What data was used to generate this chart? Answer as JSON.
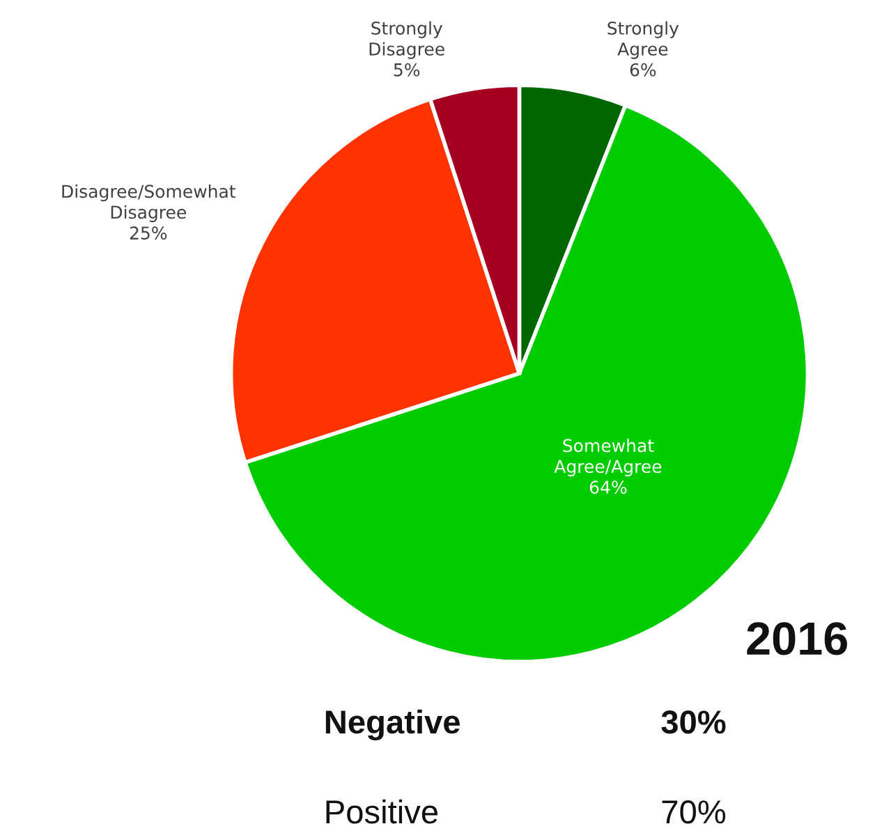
{
  "chart_data": {
    "type": "pie",
    "categories": [
      "Strongly Agree",
      "Somewhat Agree/Agree",
      "Disagree/Somewhat Disagree",
      "Strongly Disagree"
    ],
    "values": [
      6,
      64,
      25,
      5
    ],
    "colors": [
      "#006600",
      "#00cc00",
      "#ff3300",
      "#a50021"
    ],
    "value_labels": [
      "6%",
      "64%",
      "25%",
      "5%"
    ],
    "legend": false,
    "annotations": [
      "2016",
      "Negative",
      "30%",
      "Positive",
      "70%"
    ]
  }
}
